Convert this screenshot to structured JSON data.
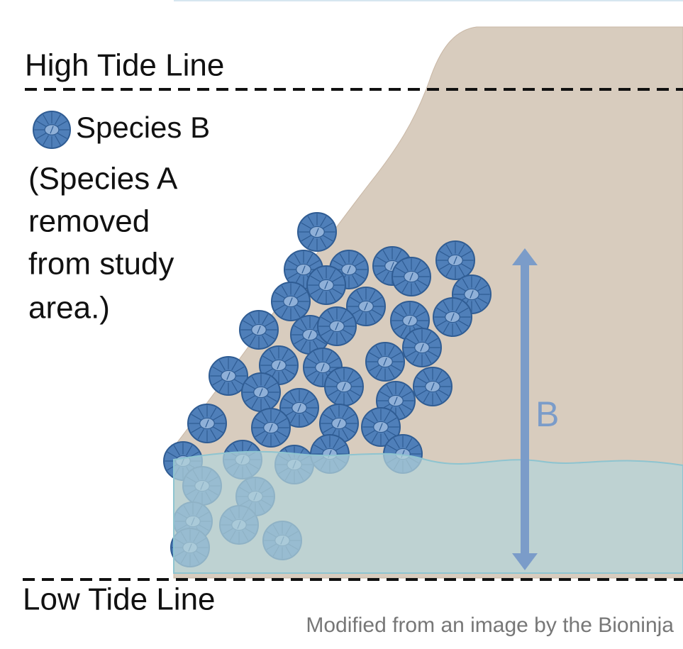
{
  "labels": {
    "high_tide": "High Tide Line",
    "low_tide": "Low Tide Line"
  },
  "legend": {
    "species": "Species B",
    "note_lines": [
      "(Species A",
      "removed",
      "from study",
      "area.)"
    ]
  },
  "diagram": {
    "arrow_label": "B"
  },
  "credit": "Modified from an image by the Bioninja"
}
